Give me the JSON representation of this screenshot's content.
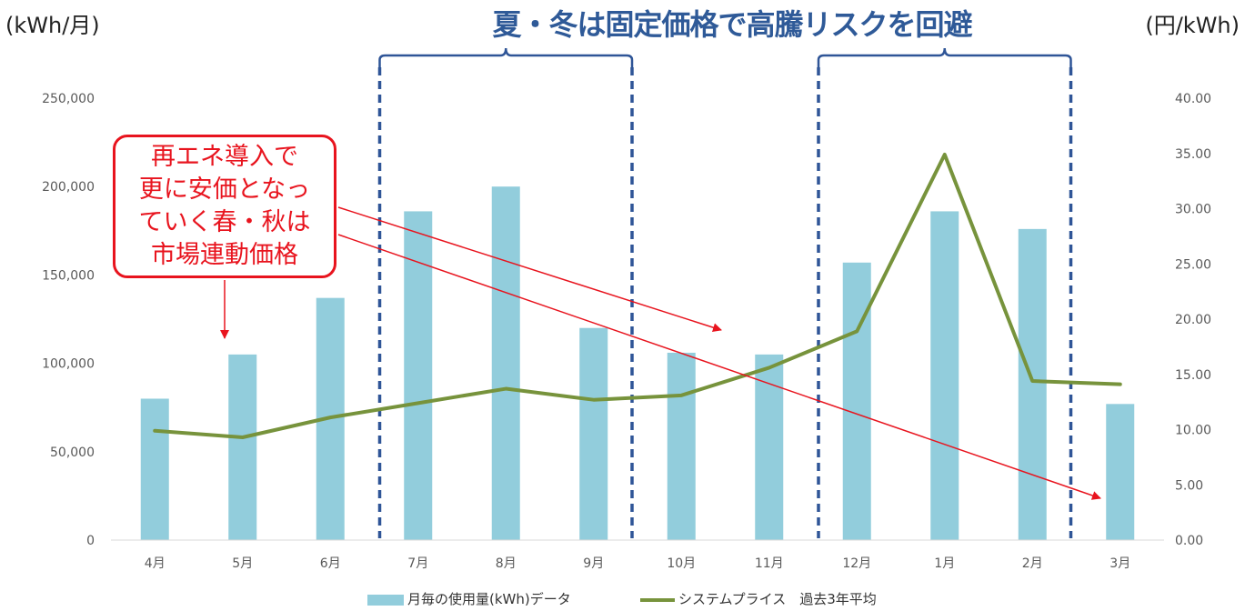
{
  "headline": "夏・冬は固定価格で高騰リスクを回避",
  "callout": {
    "lines": [
      "再エネ導入で",
      "更に安価となっ",
      "ていく春・秋は",
      "市場連動価格"
    ]
  },
  "colors": {
    "bar": "#92cddc",
    "line": "#77933c",
    "bracket": "#2f5597",
    "callout": "#e8141e",
    "arrow": "#e8141e",
    "axis_text": "#595959",
    "axis_line": "#d9d9d9"
  },
  "chart_data": {
    "type": "bar",
    "categories": [
      "4月",
      "5月",
      "6月",
      "7月",
      "8月",
      "9月",
      "10月",
      "11月",
      "12月",
      "1月",
      "2月",
      "3月"
    ],
    "ylabel": "(kWh/月)",
    "y2label": "(円/kWh)",
    "ylim": [
      0,
      250000
    ],
    "y2lim": [
      0,
      40
    ],
    "yticks": [
      "0",
      "50,000",
      "100,000",
      "150,000",
      "200,000",
      "250,000"
    ],
    "y2ticks": [
      "0.00",
      "5.00",
      "10.00",
      "15.00",
      "20.00",
      "25.00",
      "30.00",
      "35.00",
      "40.00"
    ],
    "series": [
      {
        "name": "月毎の使用量(kWh)データ",
        "type": "bar",
        "axis": "left",
        "values": [
          80000,
          105000,
          137000,
          186000,
          200000,
          120000,
          106000,
          105000,
          157000,
          186000,
          176000,
          77000
        ]
      },
      {
        "name": "システムプライス　過去3年平均",
        "type": "line",
        "axis": "right",
        "values": [
          9.9,
          9.3,
          11.1,
          12.4,
          13.7,
          12.7,
          13.1,
          15.6,
          18.9,
          34.9,
          14.4,
          14.1
        ]
      }
    ],
    "highlight_ranges": [
      {
        "from": "7月",
        "to": "9月"
      },
      {
        "from": "12月",
        "to": "2月"
      }
    ],
    "grid": false,
    "legend_position": "bottom"
  }
}
